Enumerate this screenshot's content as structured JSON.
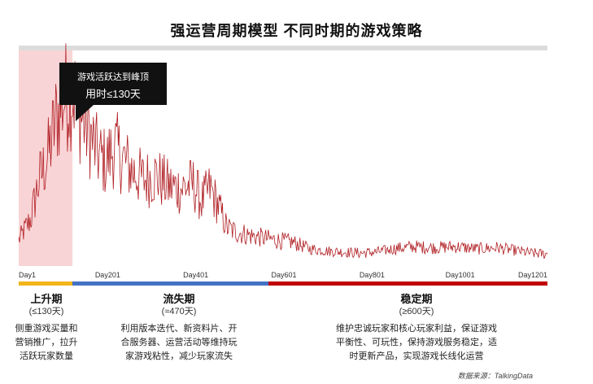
{
  "title": "强运营周期模型  不同时期的游戏策略",
  "callout": {
    "line1": "游戏活跃达到峰顶",
    "line2": "用时≤130天"
  },
  "chart_data": {
    "type": "line",
    "title": "强运营周期模型  不同时期的游戏策略",
    "x_ticks": [
      "Day1",
      "Day201",
      "Day401",
      "Day601",
      "Day801",
      "Day1001",
      "Day1201"
    ],
    "x_range": [
      1,
      1270
    ],
    "y_range": [
      0,
      1
    ],
    "series": [
      {
        "color": "#b01e23",
        "x": [
          1,
          30,
          50,
          70,
          90,
          110,
          130,
          150,
          170,
          190,
          210,
          230,
          250,
          270,
          300,
          330,
          360,
          390,
          420,
          440,
          460,
          480,
          500,
          520,
          540,
          560,
          590,
          620,
          660,
          700,
          740,
          780,
          820,
          860,
          900,
          950,
          1000,
          1050,
          1100,
          1150,
          1200,
          1230,
          1270
        ],
        "values": [
          0.12,
          0.22,
          0.4,
          0.5,
          0.68,
          0.78,
          0.82,
          0.7,
          0.62,
          0.52,
          0.48,
          0.55,
          0.5,
          0.45,
          0.4,
          0.42,
          0.37,
          0.36,
          0.38,
          0.3,
          0.36,
          0.28,
          0.18,
          0.16,
          0.15,
          0.14,
          0.13,
          0.12,
          0.11,
          0.08,
          0.07,
          0.065,
          0.06,
          0.065,
          0.08,
          0.09,
          0.085,
          0.09,
          0.08,
          0.085,
          0.07,
          0.06,
          0.055
        ]
      }
    ],
    "highlight_region": {
      "x": [
        1,
        130
      ],
      "color": "#f7c9cc"
    },
    "phases": [
      {
        "name": "上升期",
        "duration": "(≤130天)",
        "color": "#f2b51b",
        "x": [
          1,
          130
        ]
      },
      {
        "name": "流失期",
        "duration": "(≈470天)",
        "color": "#4472c4",
        "x": [
          130,
          601
        ]
      },
      {
        "name": "稳定期",
        "duration": "(≥600天)",
        "color": "#c00000",
        "x": [
          601,
          1270
        ]
      }
    ]
  },
  "phases": [
    {
      "name": "上升期",
      "duration": "(≤130天)",
      "desc": [
        "侧重游戏买量和",
        "营销推广，拉升",
        "活跃玩家数量"
      ]
    },
    {
      "name": "流失期",
      "duration": "(≈470天)",
      "desc": [
        "利用版本迭代、新资料片、开",
        "合服务器、运营活动等维持玩",
        "家游戏粘性，减少玩家流失"
      ]
    },
    {
      "name": "稳定期",
      "duration": "(≥600天)",
      "desc": [
        "维护忠诚玩家和核心玩家利益，保证游戏",
        "平衡性、可玩性，保持游戏服务稳定，适",
        "时更新产品，实现游戏长线化运营"
      ]
    }
  ],
  "source": "数据来源：TalkingData"
}
